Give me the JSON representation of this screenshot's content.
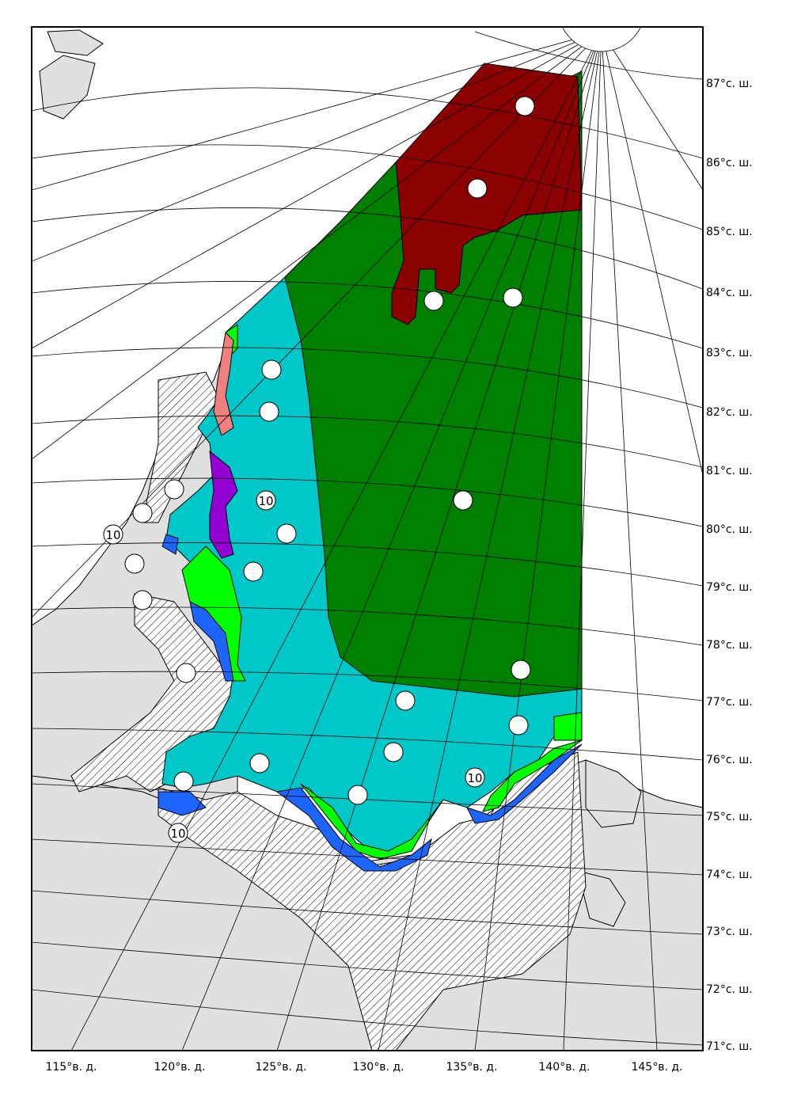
{
  "map": {
    "colors": {
      "land": "#e0e0e0",
      "fast_ice": "#cccccc",
      "very_old": "#8b0000",
      "old": "#008000",
      "first_year_thick": "#00c8c8",
      "first_year_medium": "#00ff00",
      "first_year_thin": "#1e64ff",
      "young_grey": "#9400d3",
      "nilas": "#f08080",
      "water": "#ffffff"
    },
    "latitude_labels": [
      "87°с. ш.",
      "86°с. ш.",
      "85°с. ш.",
      "84°с. ш.",
      "83°с. ш.",
      "82°с. ш.",
      "81°с. ш.",
      "80°с. ш.",
      "79°с. ш.",
      "78°с. ш.",
      "77°с. ш.",
      "76°с. ш.",
      "75°с. ш.",
      "74°с. ш.",
      "73°с. ш.",
      "72°с. ш.",
      "71°с. ш."
    ],
    "longitude_labels": [
      "115°в. д.",
      "120°в. д.",
      "125°в. д.",
      "130°в. д.",
      "135°в. д.",
      "140°в. д.",
      "145°в. д."
    ],
    "concentration_markers": [
      "10",
      "10",
      "10",
      "10"
    ]
  }
}
